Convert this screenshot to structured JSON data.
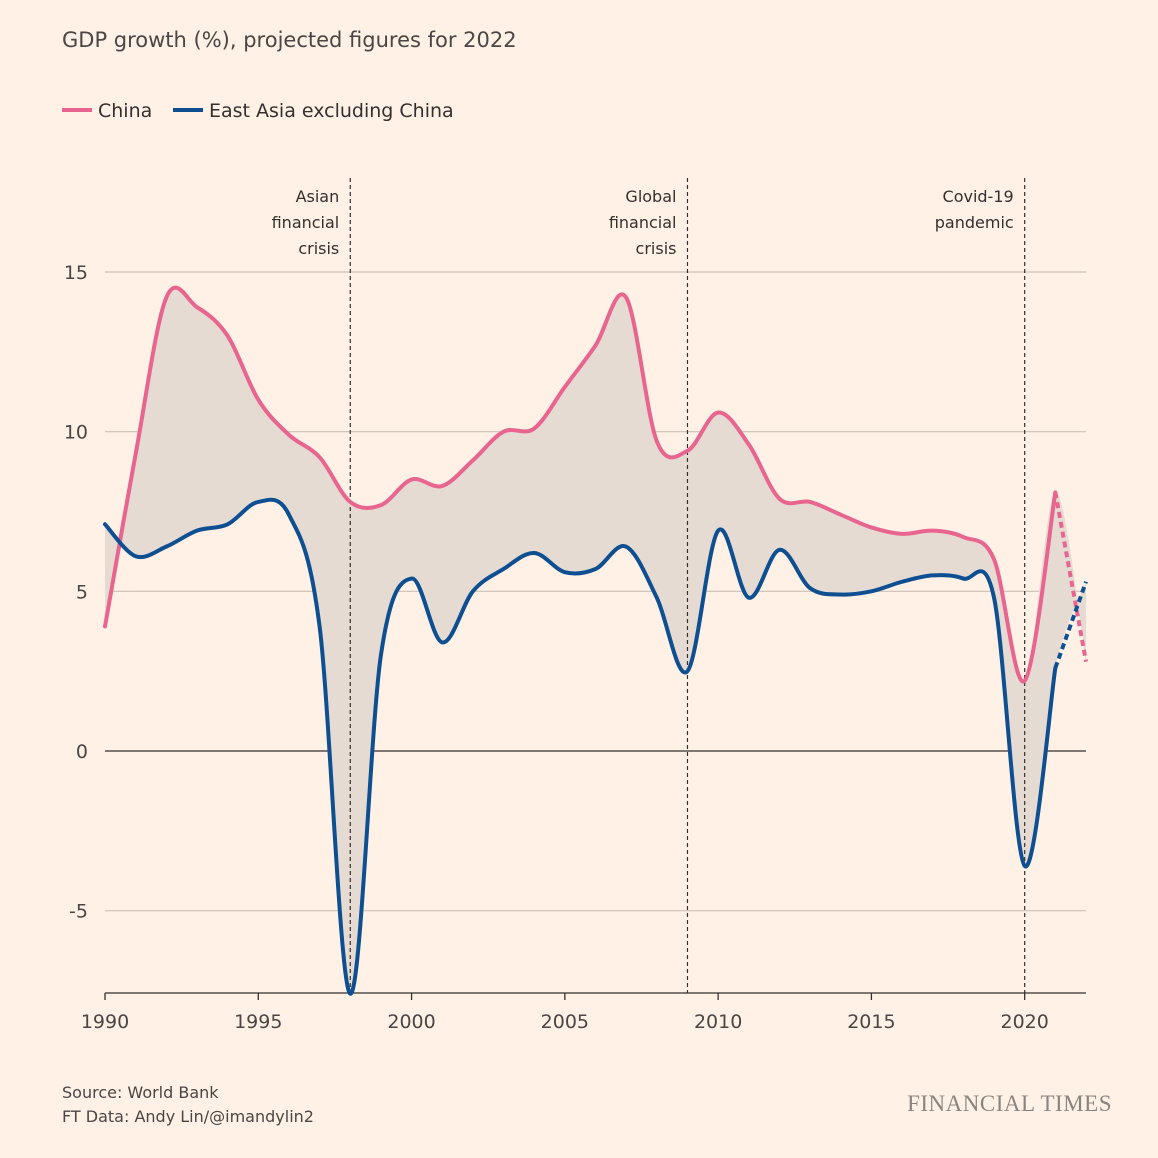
{
  "title": "GDP growth (%), projected figures for 2022",
  "source_lines": [
    "Source: World Bank",
    "FT Data: Andy Lin/@imandylin2"
  ],
  "brand": "FINANCIAL TIMES",
  "colors": {
    "china": "#e8658f",
    "east_asia": "#0e4f92",
    "gap_fill": "#e6dbd3",
    "gridline": "#cdc0b6",
    "zero_line": "#33302e",
    "background": "#fff1e5"
  },
  "chart_data": {
    "type": "line",
    "title": "GDP growth (%), projected figures for 2022",
    "xlabel": "",
    "ylabel": "",
    "xlim": [
      1990,
      2022
    ],
    "ylim": [
      -7.7,
      15
    ],
    "x_ticks": [
      1990,
      1995,
      2000,
      2005,
      2010,
      2015,
      2020
    ],
    "y_ticks": [
      -5,
      0,
      5,
      10,
      15
    ],
    "grid": true,
    "legend_position": "top-left",
    "fill_between_series": true,
    "x": [
      1990,
      1991,
      1992,
      1993,
      1994,
      1995,
      1996,
      1997,
      1998,
      1999,
      2000,
      2001,
      2002,
      2003,
      2004,
      2005,
      2006,
      2007,
      2008,
      2009,
      2010,
      2011,
      2012,
      2013,
      2014,
      2015,
      2016,
      2017,
      2018,
      2019,
      2020,
      2021,
      2022
    ],
    "series": [
      {
        "name": "China",
        "color": "#e8658f",
        "values": [
          3.9,
          9.3,
          14.2,
          13.9,
          13.0,
          11.0,
          9.9,
          9.2,
          7.8,
          7.7,
          8.5,
          8.3,
          9.1,
          10.0,
          10.1,
          11.4,
          12.7,
          14.2,
          9.7,
          9.4,
          10.6,
          9.6,
          7.9,
          7.8,
          7.4,
          7.0,
          6.8,
          6.9,
          6.7,
          6.0,
          2.2,
          8.1,
          2.8
        ],
        "projected_from": 2021
      },
      {
        "name": "East Asia excluding China",
        "color": "#0e4f92",
        "values": [
          7.1,
          6.1,
          6.4,
          6.9,
          7.1,
          7.8,
          7.4,
          3.9,
          -7.6,
          3.0,
          5.4,
          3.4,
          5.0,
          5.7,
          6.2,
          5.6,
          5.7,
          6.4,
          4.8,
          2.5,
          6.9,
          4.8,
          6.3,
          5.1,
          4.9,
          5.0,
          5.3,
          5.5,
          5.4,
          4.8,
          -3.6,
          2.6,
          5.3
        ],
        "projected_from": 2021
      }
    ],
    "annotations": [
      {
        "x": 1998,
        "lines": [
          "Asian",
          "financial",
          "crisis"
        ]
      },
      {
        "x": 2009,
        "lines": [
          "Global",
          "financial",
          "crisis"
        ]
      },
      {
        "x": 2020,
        "lines": [
          "Covid-19",
          "pandemic"
        ]
      }
    ]
  }
}
